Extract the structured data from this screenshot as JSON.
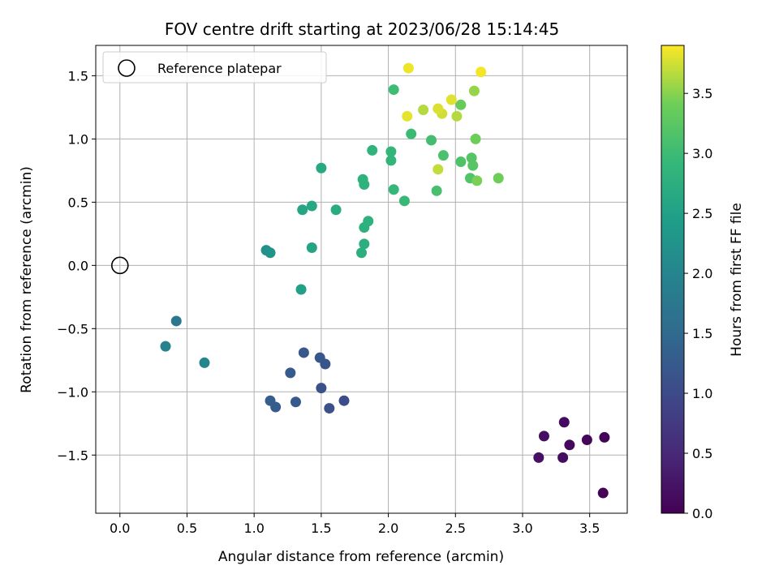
{
  "chart_data": {
    "type": "scatter",
    "title": "FOV centre drift starting at 2023/06/28 15:14:45",
    "xlabel": "Angular distance from reference (arcmin)",
    "ylabel": "Rotation from reference (arcmin)",
    "xlim": [
      -0.18,
      3.78
    ],
    "ylim": [
      -1.96,
      1.74
    ],
    "xticks": [
      0.0,
      0.5,
      1.0,
      1.5,
      2.0,
      2.5,
      3.0,
      3.5
    ],
    "xtick_labels": [
      "0.0",
      "0.5",
      "1.0",
      "1.5",
      "2.0",
      "2.5",
      "3.0",
      "3.5"
    ],
    "yticks": [
      -1.5,
      -1.0,
      -0.5,
      0.0,
      0.5,
      1.0,
      1.5
    ],
    "ytick_labels": [
      "−1.5",
      "−1.0",
      "−0.5",
      "0.0",
      "0.5",
      "1.0",
      "1.5"
    ],
    "grid": true,
    "legend": {
      "placement": "upper-left",
      "entries": [
        {
          "label": "Reference platepar",
          "marker": "open-circle"
        }
      ]
    },
    "reference_point": {
      "x": 0.0,
      "y": 0.0
    },
    "colorbar": {
      "label": "Hours from first FF file",
      "range": [
        0.0,
        3.9
      ],
      "ticks": [
        0.0,
        0.5,
        1.0,
        1.5,
        2.0,
        2.5,
        3.0,
        3.5
      ],
      "tick_labels": [
        "0.0",
        "0.5",
        "1.0",
        "1.5",
        "2.0",
        "2.5",
        "3.0",
        "3.5"
      ],
      "colormap": "viridis"
    },
    "points": [
      {
        "x": 3.6,
        "y": -1.8,
        "c": 0.02
      },
      {
        "x": 3.61,
        "y": -1.36,
        "c": 0.05
      },
      {
        "x": 3.48,
        "y": -1.38,
        "c": 0.07
      },
      {
        "x": 3.35,
        "y": -1.42,
        "c": 0.1
      },
      {
        "x": 3.31,
        "y": -1.24,
        "c": 0.13
      },
      {
        "x": 3.3,
        "y": -1.52,
        "c": 0.15
      },
      {
        "x": 3.16,
        "y": -1.35,
        "c": 0.18
      },
      {
        "x": 3.12,
        "y": -1.52,
        "c": 0.2
      },
      {
        "x": 1.67,
        "y": -1.07,
        "c": 1.05
      },
      {
        "x": 1.56,
        "y": -1.13,
        "c": 1.1
      },
      {
        "x": 1.5,
        "y": -0.97,
        "c": 1.12
      },
      {
        "x": 1.53,
        "y": -0.78,
        "c": 1.15
      },
      {
        "x": 1.49,
        "y": -0.73,
        "c": 1.18
      },
      {
        "x": 1.37,
        "y": -0.69,
        "c": 1.2
      },
      {
        "x": 1.31,
        "y": -1.08,
        "c": 1.22
      },
      {
        "x": 1.27,
        "y": -0.85,
        "c": 1.25
      },
      {
        "x": 1.16,
        "y": -1.12,
        "c": 1.28
      },
      {
        "x": 1.12,
        "y": -1.07,
        "c": 1.3
      },
      {
        "x": 0.42,
        "y": -0.44,
        "c": 1.75
      },
      {
        "x": 0.34,
        "y": -0.64,
        "c": 1.95
      },
      {
        "x": 0.63,
        "y": -0.77,
        "c": 2.0
      },
      {
        "x": 1.09,
        "y": 0.12,
        "c": 2.2
      },
      {
        "x": 1.12,
        "y": 0.1,
        "c": 2.25
      },
      {
        "x": 1.35,
        "y": -0.19,
        "c": 2.5
      },
      {
        "x": 1.43,
        "y": 0.14,
        "c": 2.55
      },
      {
        "x": 1.36,
        "y": 0.44,
        "c": 2.6
      },
      {
        "x": 1.43,
        "y": 0.47,
        "c": 2.62
      },
      {
        "x": 1.5,
        "y": 0.77,
        "c": 2.65
      },
      {
        "x": 1.61,
        "y": 0.44,
        "c": 2.7
      },
      {
        "x": 1.8,
        "y": 0.1,
        "c": 2.75
      },
      {
        "x": 1.82,
        "y": 0.17,
        "c": 2.75
      },
      {
        "x": 1.82,
        "y": 0.3,
        "c": 2.78
      },
      {
        "x": 1.85,
        "y": 0.35,
        "c": 2.8
      },
      {
        "x": 1.81,
        "y": 0.68,
        "c": 2.8
      },
      {
        "x": 1.82,
        "y": 0.64,
        "c": 2.82
      },
      {
        "x": 1.88,
        "y": 0.91,
        "c": 2.85
      },
      {
        "x": 2.02,
        "y": 0.83,
        "c": 2.88
      },
      {
        "x": 2.02,
        "y": 0.9,
        "c": 2.9
      },
      {
        "x": 2.04,
        "y": 0.6,
        "c": 2.92
      },
      {
        "x": 2.12,
        "y": 0.51,
        "c": 2.95
      },
      {
        "x": 2.17,
        "y": 1.04,
        "c": 2.98
      },
      {
        "x": 2.04,
        "y": 1.39,
        "c": 3.0
      },
      {
        "x": 2.32,
        "y": 0.99,
        "c": 3.05
      },
      {
        "x": 2.36,
        "y": 0.59,
        "c": 3.1
      },
      {
        "x": 2.41,
        "y": 0.87,
        "c": 3.12
      },
      {
        "x": 2.54,
        "y": 0.82,
        "c": 3.15
      },
      {
        "x": 2.61,
        "y": 0.69,
        "c": 3.18
      },
      {
        "x": 2.62,
        "y": 0.85,
        "c": 3.2
      },
      {
        "x": 2.63,
        "y": 0.79,
        "c": 3.22
      },
      {
        "x": 2.54,
        "y": 1.27,
        "c": 3.35
      },
      {
        "x": 2.65,
        "y": 1.0,
        "c": 3.4
      },
      {
        "x": 2.82,
        "y": 0.69,
        "c": 3.4
      },
      {
        "x": 2.66,
        "y": 0.67,
        "c": 3.45
      },
      {
        "x": 2.64,
        "y": 1.38,
        "c": 3.55
      },
      {
        "x": 2.51,
        "y": 1.18,
        "c": 3.65
      },
      {
        "x": 2.26,
        "y": 1.23,
        "c": 3.65
      },
      {
        "x": 2.37,
        "y": 0.76,
        "c": 3.7
      },
      {
        "x": 2.4,
        "y": 1.2,
        "c": 3.75
      },
      {
        "x": 2.37,
        "y": 1.24,
        "c": 3.78
      },
      {
        "x": 2.47,
        "y": 1.31,
        "c": 3.8
      },
      {
        "x": 2.14,
        "y": 1.18,
        "c": 3.82
      },
      {
        "x": 2.15,
        "y": 1.56,
        "c": 3.85
      },
      {
        "x": 2.69,
        "y": 1.53,
        "c": 3.87
      }
    ]
  }
}
